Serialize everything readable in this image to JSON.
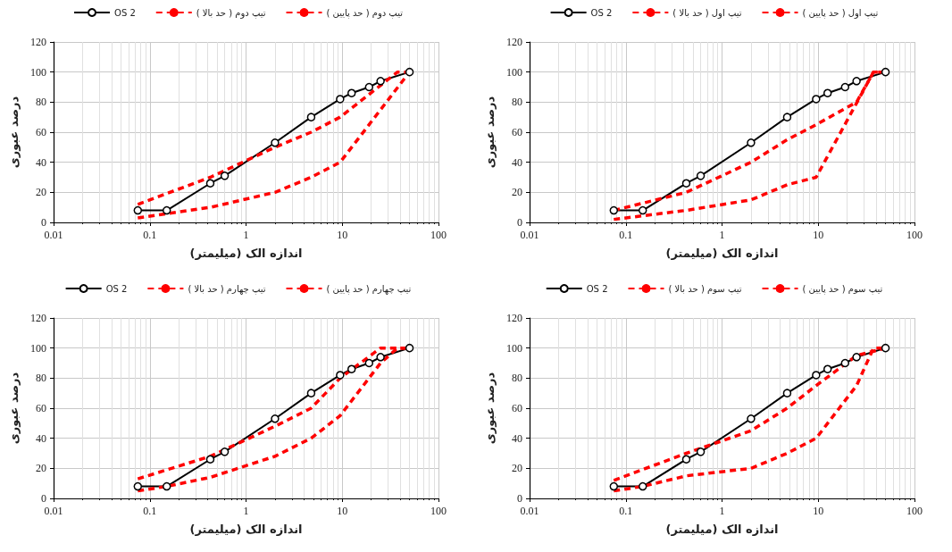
{
  "chart_data": [
    {
      "type": "line",
      "xlabel": "اندازه الک (میلیمتر)",
      "ylabel": "درصد عبوری",
      "log": "x",
      "grid": true,
      "legend": "top",
      "xlim": [
        0.01,
        100
      ],
      "xticks": [
        0.01,
        0.1,
        1,
        10,
        100
      ],
      "ylim": [
        0,
        120
      ],
      "yticks": [
        0,
        20,
        40,
        60,
        80,
        100,
        120
      ],
      "series": [
        {
          "name": "OS 2",
          "color": "#000000",
          "marker": "circle",
          "line_style": "solid",
          "x": [
            0.075,
            0.15,
            0.425,
            0.6,
            2,
            4.75,
            9.5,
            12.5,
            19,
            25,
            50
          ],
          "values": [
            8,
            8,
            26,
            31,
            53,
            70,
            82,
            86,
            90,
            94,
            100
          ]
        },
        {
          "name": "تیپ دوم ( حد بالا )",
          "color": "#ff0000",
          "marker": "none",
          "line_style": "dashed",
          "x": [
            0.075,
            0.425,
            2,
            4.75,
            9.5,
            37.5,
            50
          ],
          "values": [
            12,
            30,
            50,
            60,
            70,
            100,
            100
          ]
        },
        {
          "name": "تیپ دوم ( حد پایین )",
          "color": "#ff0000",
          "marker": "none",
          "line_style": "dashed",
          "x": [
            0.075,
            0.425,
            2,
            4.75,
            9.5,
            50
          ],
          "values": [
            3,
            10,
            20,
            30,
            40,
            100
          ]
        }
      ]
    },
    {
      "type": "line",
      "xlabel": "اندازه الک (میلیمتر)",
      "ylabel": "درصد عبوری",
      "log": "x",
      "grid": true,
      "legend": "top",
      "xlim": [
        0.01,
        100
      ],
      "xticks": [
        0.01,
        0.1,
        1,
        10,
        100
      ],
      "ylim": [
        0,
        120
      ],
      "yticks": [
        0,
        20,
        40,
        60,
        80,
        100,
        120
      ],
      "series": [
        {
          "name": "OS 2",
          "color": "#000000",
          "marker": "circle",
          "line_style": "solid",
          "x": [
            0.075,
            0.15,
            0.425,
            0.6,
            2,
            4.75,
            9.5,
            12.5,
            19,
            25,
            50
          ],
          "values": [
            8,
            8,
            26,
            31,
            53,
            70,
            82,
            86,
            90,
            94,
            100
          ]
        },
        {
          "name": "تیپ اول ( حد بالا )",
          "color": "#ff0000",
          "marker": "none",
          "line_style": "dashed",
          "x": [
            0.075,
            0.425,
            2,
            4.75,
            9.5,
            25,
            37.5,
            50
          ],
          "values": [
            8,
            20,
            40,
            55,
            65,
            80,
            100,
            100
          ]
        },
        {
          "name": "تیپ اول ( حد پایین )",
          "color": "#ff0000",
          "marker": "none",
          "line_style": "dashed",
          "x": [
            0.075,
            0.425,
            2,
            4.75,
            9.5,
            37.5,
            50
          ],
          "values": [
            2,
            8,
            15,
            25,
            30,
            100,
            100
          ]
        }
      ]
    },
    {
      "type": "line",
      "xlabel": "اندازه الک (میلیمتر)",
      "ylabel": "درصد عبوری",
      "log": "x",
      "grid": true,
      "legend": "top",
      "xlim": [
        0.01,
        100
      ],
      "xticks": [
        0.01,
        0.1,
        1,
        10,
        100
      ],
      "ylim": [
        0,
        120
      ],
      "yticks": [
        0,
        20,
        40,
        60,
        80,
        100,
        120
      ],
      "series": [
        {
          "name": "OS 2",
          "color": "#000000",
          "marker": "circle",
          "line_style": "solid",
          "x": [
            0.075,
            0.15,
            0.425,
            0.6,
            2,
            4.75,
            9.5,
            12.5,
            19,
            25,
            50
          ],
          "values": [
            8,
            8,
            26,
            31,
            53,
            70,
            82,
            86,
            90,
            94,
            100
          ]
        },
        {
          "name": "تیپ چهارم ( حد بالا )",
          "color": "#ff0000",
          "marker": "none",
          "line_style": "dashed",
          "x": [
            0.075,
            0.425,
            2,
            4.75,
            9.5,
            25,
            50
          ],
          "values": [
            13,
            28,
            48,
            60,
            80,
            100,
            100
          ]
        },
        {
          "name": "تیپ چهارم ( حد پایین )",
          "color": "#ff0000",
          "marker": "none",
          "line_style": "dashed",
          "x": [
            0.075,
            0.15,
            0.425,
            2,
            4.75,
            9.5,
            25,
            37.5,
            50
          ],
          "values": [
            5,
            8,
            14,
            28,
            40,
            55,
            90,
            100,
            100
          ]
        }
      ]
    },
    {
      "type": "line",
      "xlabel": "اندازه الک (میلیمتر)",
      "ylabel": "درصد عبوری",
      "log": "x",
      "grid": true,
      "legend": "top",
      "xlim": [
        0.01,
        100
      ],
      "xticks": [
        0.01,
        0.1,
        1,
        10,
        100
      ],
      "ylim": [
        0,
        120
      ],
      "yticks": [
        0,
        20,
        40,
        60,
        80,
        100,
        120
      ],
      "series": [
        {
          "name": "OS 2",
          "color": "#000000",
          "marker": "circle",
          "line_style": "solid",
          "x": [
            0.075,
            0.15,
            0.425,
            0.6,
            2,
            4.75,
            9.5,
            12.5,
            19,
            25,
            50
          ],
          "values": [
            8,
            8,
            26,
            31,
            53,
            70,
            82,
            86,
            90,
            94,
            100
          ]
        },
        {
          "name": "تیپ سوم ( حد بالا )",
          "color": "#ff0000",
          "marker": "none",
          "line_style": "dashed",
          "x": [
            0.075,
            0.425,
            2,
            4.75,
            9.5,
            25,
            50
          ],
          "values": [
            12,
            30,
            45,
            60,
            75,
            95,
            100
          ]
        },
        {
          "name": "تیپ سوم ( حد پایین )",
          "color": "#ff0000",
          "marker": "none",
          "line_style": "dashed",
          "x": [
            0.075,
            0.15,
            0.425,
            2,
            4.75,
            9.5,
            25,
            37.5,
            50
          ],
          "values": [
            5,
            8,
            15,
            20,
            30,
            40,
            75,
            100,
            100
          ]
        }
      ]
    }
  ]
}
